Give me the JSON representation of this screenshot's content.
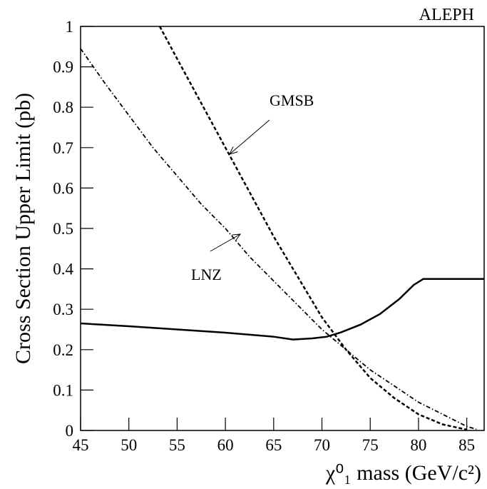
{
  "chart_data": {
    "type": "line",
    "corner_label": "ALEPH",
    "x_label": "χ⁰₁ mass (GeV/c²)",
    "y_label": "Cross Section Upper Limit (pb)",
    "xlim": [
      45,
      86.8
    ],
    "ylim": [
      0,
      1
    ],
    "xticks": [
      45,
      50,
      55,
      60,
      65,
      70,
      75,
      80,
      85
    ],
    "yticks": [
      0,
      0.1,
      0.2,
      0.3,
      0.4,
      0.5,
      0.6,
      0.7,
      0.8,
      0.9,
      1
    ],
    "series": [
      {
        "color": "#000000",
        "style": "solid",
        "x": [
          45,
          50,
          55,
          60,
          65,
          67,
          69,
          70.5,
          72,
          74,
          76,
          78,
          79.5,
          80.5,
          86.8
        ],
        "values": [
          0.265,
          0.258,
          0.25,
          0.242,
          0.232,
          0.225,
          0.228,
          0.232,
          0.243,
          0.262,
          0.288,
          0.325,
          0.36,
          0.375,
          0.375
        ]
      },
      {
        "name": "GMSB",
        "color": "#000000",
        "style": "dashed",
        "x": [
          53.2,
          55,
          57.5,
          60,
          62.5,
          65,
          67.5,
          70,
          72.5,
          75,
          77.5,
          80,
          82.5,
          85
        ],
        "values": [
          1.0,
          0.92,
          0.81,
          0.7,
          0.59,
          0.48,
          0.38,
          0.28,
          0.2,
          0.13,
          0.08,
          0.04,
          0.015,
          0.002
        ]
      },
      {
        "name": "LNZ",
        "color": "#000000",
        "style": "dashdot",
        "x": [
          45,
          47.5,
          50,
          52.5,
          55,
          57.5,
          60,
          62.5,
          65,
          67.5,
          70,
          72.5,
          75,
          77.5,
          80,
          82.5,
          85,
          86
        ],
        "values": [
          0.945,
          0.86,
          0.78,
          0.7,
          0.63,
          0.56,
          0.5,
          0.43,
          0.37,
          0.31,
          0.25,
          0.2,
          0.15,
          0.11,
          0.07,
          0.04,
          0.01,
          0.003
        ]
      }
    ]
  }
}
